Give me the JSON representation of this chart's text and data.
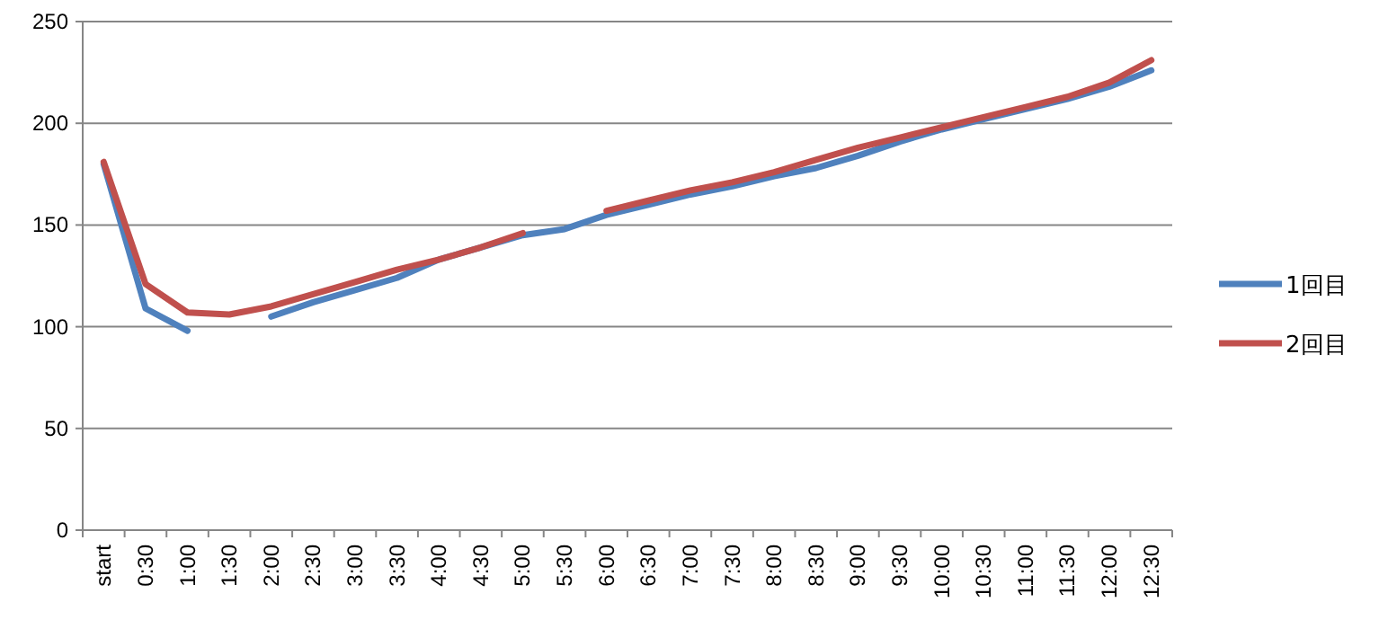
{
  "chart_data": {
    "type": "line",
    "categories": [
      "start",
      "0:30",
      "1:00",
      "1:30",
      "2:00",
      "2:30",
      "3:00",
      "3:30",
      "4:00",
      "4:30",
      "5:00",
      "5:30",
      "6:00",
      "6:30",
      "7:00",
      "7:30",
      "8:00",
      "8:30",
      "9:00",
      "9:30",
      "10:00",
      "10:30",
      "11:00",
      "11:30",
      "12:00",
      "12:30"
    ],
    "series": [
      {
        "name": "1回目",
        "color": "#4f81bd",
        "values": [
          180,
          109,
          98,
          null,
          105,
          112,
          118,
          124,
          133,
          139,
          145,
          148,
          155,
          160,
          165,
          169,
          174,
          178,
          184,
          191,
          197,
          202,
          207,
          212,
          218,
          226
        ]
      },
      {
        "name": "2回目",
        "color": "#c0504d",
        "values": [
          181,
          121,
          107,
          106,
          110,
          116,
          122,
          128,
          133,
          139,
          146,
          null,
          157,
          162,
          167,
          171,
          176,
          182,
          188,
          193,
          198,
          203,
          208,
          213,
          220,
          231
        ]
      }
    ],
    "ylim": [
      0,
      250
    ],
    "yticks": [
      0,
      50,
      100,
      150,
      200,
      250
    ],
    "grid": "y",
    "legend": "right",
    "line_style": "solid",
    "marker": "none"
  }
}
